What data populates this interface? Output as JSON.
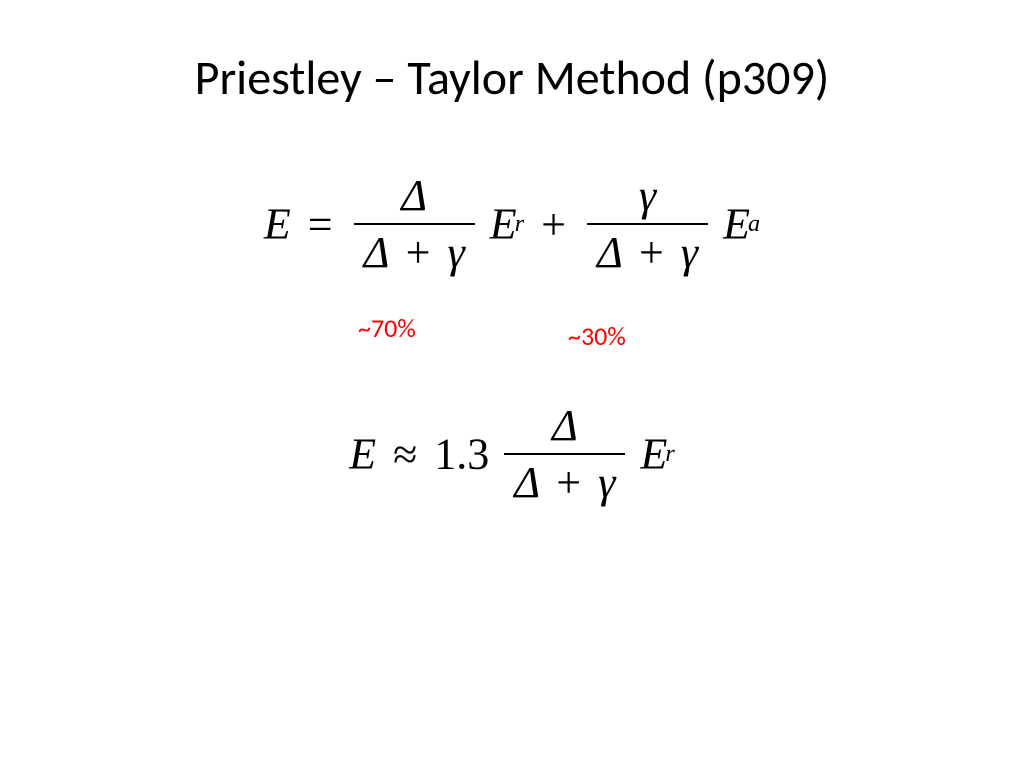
{
  "title": "Priestley – Taylor Method (p309)",
  "eq1": {
    "lhs_var": "E",
    "equals": "=",
    "frac1_num": "Δ",
    "frac1_den_a": "Δ",
    "frac1_den_plus": "+",
    "frac1_den_b": "γ",
    "term1_var": "E",
    "term1_sub": "r",
    "plus": "+",
    "frac2_num": "γ",
    "frac2_den_a": "Δ",
    "frac2_den_plus": "+",
    "frac2_den_b": "γ",
    "term2_var": "E",
    "term2_sub": "a"
  },
  "annotations": {
    "left": "~70%",
    "right": "~30%",
    "color": "#ff0000",
    "fontsize": 26
  },
  "eq2": {
    "lhs_var": "E",
    "approx": "≈",
    "coef": "1.3",
    "frac_num": "Δ",
    "frac_den_a": "Δ",
    "frac_den_plus": "+",
    "frac_den_b": "γ",
    "term_var": "E",
    "term_sub": "r"
  },
  "style": {
    "background_color": "#ffffff",
    "title_color": "#000000",
    "title_fontsize": 48,
    "equation_color": "#000000",
    "equation_fontsize": 44,
    "equation_font": "Times New Roman"
  }
}
